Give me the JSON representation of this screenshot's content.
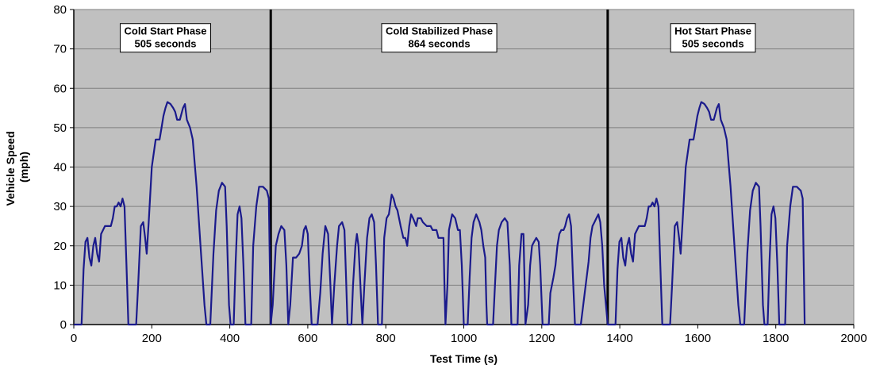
{
  "chart_data": {
    "type": "line",
    "title": "",
    "xlabel": "Test Time (s)",
    "ylabel_lines": [
      "Vehicle Speed",
      "(mph)"
    ],
    "xlim": [
      0,
      2000
    ],
    "ylim": [
      0,
      80
    ],
    "xticks": [
      0,
      200,
      400,
      600,
      800,
      1000,
      1200,
      1400,
      1600,
      1800,
      2000
    ],
    "yticks": [
      0,
      10,
      20,
      30,
      40,
      50,
      60,
      70,
      80
    ],
    "grid": true,
    "legend": "none",
    "colors": {
      "plot_bg": "#c0c0c0",
      "line": "#1a1a8c",
      "divider": "#000000",
      "grid": "#808080"
    },
    "phase_dividers": [
      505,
      1369
    ],
    "annotations": [
      {
        "line1": "Cold Start Phase",
        "line2": "505 seconds",
        "x": 235,
        "y": 73
      },
      {
        "line1": "Cold Stabilized Phase",
        "line2": "864 seconds",
        "x": 937,
        "y": 73
      },
      {
        "line1": "Hot Start Phase",
        "line2": "505 seconds",
        "x": 1639,
        "y": 73
      }
    ],
    "series": [
      {
        "values": [
          [
            0,
            0
          ],
          [
            20,
            0
          ],
          [
            25,
            14
          ],
          [
            30,
            21
          ],
          [
            35,
            22
          ],
          [
            40,
            17
          ],
          [
            45,
            15
          ],
          [
            50,
            20
          ],
          [
            55,
            22
          ],
          [
            60,
            18
          ],
          [
            65,
            16
          ],
          [
            70,
            23
          ],
          [
            80,
            25
          ],
          [
            95,
            25
          ],
          [
            100,
            27
          ],
          [
            105,
            30
          ],
          [
            110,
            30
          ],
          [
            115,
            31
          ],
          [
            120,
            30
          ],
          [
            125,
            32
          ],
          [
            130,
            30
          ],
          [
            135,
            15
          ],
          [
            140,
            0
          ],
          [
            160,
            0
          ],
          [
            165,
            10
          ],
          [
            172,
            25
          ],
          [
            178,
            26
          ],
          [
            183,
            22
          ],
          [
            187,
            18
          ],
          [
            192,
            26
          ],
          [
            200,
            40
          ],
          [
            210,
            47
          ],
          [
            220,
            47
          ],
          [
            225,
            50
          ],
          [
            230,
            53
          ],
          [
            235,
            55
          ],
          [
            240,
            56.5
          ],
          [
            248,
            56
          ],
          [
            255,
            55
          ],
          [
            260,
            54
          ],
          [
            265,
            52
          ],
          [
            272,
            52
          ],
          [
            280,
            55
          ],
          [
            285,
            56
          ],
          [
            290,
            52
          ],
          [
            298,
            50
          ],
          [
            305,
            47
          ],
          [
            315,
            35
          ],
          [
            325,
            20
          ],
          [
            335,
            5
          ],
          [
            340,
            0
          ],
          [
            350,
            0
          ],
          [
            358,
            18
          ],
          [
            365,
            29
          ],
          [
            372,
            34
          ],
          [
            380,
            36
          ],
          [
            388,
            35
          ],
          [
            392,
            25
          ],
          [
            398,
            5
          ],
          [
            402,
            0
          ],
          [
            410,
            0
          ],
          [
            415,
            16
          ],
          [
            420,
            28
          ],
          [
            425,
            30
          ],
          [
            430,
            27
          ],
          [
            435,
            15
          ],
          [
            440,
            0
          ],
          [
            455,
            0
          ],
          [
            460,
            20
          ],
          [
            468,
            30
          ],
          [
            475,
            35
          ],
          [
            485,
            35
          ],
          [
            495,
            34
          ],
          [
            500,
            32
          ],
          [
            505,
            0
          ],
          [
            510,
            5
          ],
          [
            518,
            20
          ],
          [
            525,
            23
          ],
          [
            532,
            25
          ],
          [
            540,
            24
          ],
          [
            545,
            15
          ],
          [
            550,
            0
          ],
          [
            555,
            5
          ],
          [
            562,
            17
          ],
          [
            570,
            17
          ],
          [
            578,
            18
          ],
          [
            585,
            20
          ],
          [
            590,
            24
          ],
          [
            595,
            25
          ],
          [
            600,
            23
          ],
          [
            605,
            10
          ],
          [
            610,
            0
          ],
          [
            625,
            0
          ],
          [
            632,
            8
          ],
          [
            638,
            18
          ],
          [
            645,
            25
          ],
          [
            652,
            23
          ],
          [
            658,
            10
          ],
          [
            662,
            0
          ],
          [
            668,
            10
          ],
          [
            675,
            20
          ],
          [
            680,
            25
          ],
          [
            688,
            26
          ],
          [
            694,
            24
          ],
          [
            698,
            12
          ],
          [
            702,
            0
          ],
          [
            712,
            0
          ],
          [
            716,
            10
          ],
          [
            722,
            20
          ],
          [
            726,
            23
          ],
          [
            730,
            20
          ],
          [
            736,
            8
          ],
          [
            740,
            0
          ],
          [
            745,
            10
          ],
          [
            752,
            22
          ],
          [
            758,
            27
          ],
          [
            764,
            28
          ],
          [
            770,
            26
          ],
          [
            775,
            15
          ],
          [
            780,
            0
          ],
          [
            790,
            0
          ],
          [
            796,
            22
          ],
          [
            802,
            27
          ],
          [
            808,
            28
          ],
          [
            815,
            33
          ],
          [
            820,
            32
          ],
          [
            825,
            30
          ],
          [
            830,
            29
          ],
          [
            838,
            25
          ],
          [
            845,
            22
          ],
          [
            850,
            22
          ],
          [
            855,
            20
          ],
          [
            860,
            25
          ],
          [
            865,
            28
          ],
          [
            870,
            27
          ],
          [
            878,
            25
          ],
          [
            882,
            27
          ],
          [
            890,
            27
          ],
          [
            895,
            26
          ],
          [
            905,
            25
          ],
          [
            915,
            25
          ],
          [
            920,
            24
          ],
          [
            930,
            24
          ],
          [
            935,
            22
          ],
          [
            942,
            22
          ],
          [
            948,
            22
          ],
          [
            950,
            12
          ],
          [
            953,
            0
          ],
          [
            958,
            10
          ],
          [
            962,
            24
          ],
          [
            970,
            28
          ],
          [
            978,
            27
          ],
          [
            985,
            24
          ],
          [
            990,
            24
          ],
          [
            995,
            15
          ],
          [
            1000,
            0
          ],
          [
            1010,
            0
          ],
          [
            1015,
            12
          ],
          [
            1020,
            22
          ],
          [
            1025,
            26
          ],
          [
            1032,
            28
          ],
          [
            1040,
            26
          ],
          [
            1045,
            24
          ],
          [
            1050,
            20
          ],
          [
            1055,
            17
          ],
          [
            1058,
            5
          ],
          [
            1060,
            0
          ],
          [
            1075,
            0
          ],
          [
            1080,
            10
          ],
          [
            1085,
            20
          ],
          [
            1090,
            24
          ],
          [
            1097,
            26
          ],
          [
            1105,
            27
          ],
          [
            1112,
            26
          ],
          [
            1118,
            15
          ],
          [
            1122,
            0
          ],
          [
            1138,
            0
          ],
          [
            1142,
            15
          ],
          [
            1148,
            23
          ],
          [
            1153,
            23
          ],
          [
            1156,
            10
          ],
          [
            1158,
            0
          ],
          [
            1165,
            5
          ],
          [
            1170,
            15
          ],
          [
            1175,
            20
          ],
          [
            1180,
            21
          ],
          [
            1186,
            22
          ],
          [
            1192,
            21
          ],
          [
            1196,
            15
          ],
          [
            1200,
            5
          ],
          [
            1202,
            0
          ],
          [
            1218,
            0
          ],
          [
            1222,
            8
          ],
          [
            1230,
            12
          ],
          [
            1235,
            15
          ],
          [
            1240,
            20
          ],
          [
            1245,
            23
          ],
          [
            1250,
            24
          ],
          [
            1256,
            24
          ],
          [
            1260,
            25
          ],
          [
            1265,
            27
          ],
          [
            1270,
            28
          ],
          [
            1275,
            25
          ],
          [
            1280,
            12
          ],
          [
            1285,
            0
          ],
          [
            1300,
            0
          ],
          [
            1310,
            8
          ],
          [
            1320,
            16
          ],
          [
            1325,
            22
          ],
          [
            1330,
            25
          ],
          [
            1335,
            26
          ],
          [
            1340,
            27
          ],
          [
            1345,
            28
          ],
          [
            1350,
            26
          ],
          [
            1355,
            20
          ],
          [
            1360,
            10
          ],
          [
            1369,
            0
          ],
          [
            1389,
            0
          ],
          [
            1394,
            14
          ],
          [
            1399,
            21
          ],
          [
            1404,
            22
          ],
          [
            1409,
            17
          ],
          [
            1414,
            15
          ],
          [
            1419,
            20
          ],
          [
            1424,
            22
          ],
          [
            1429,
            18
          ],
          [
            1434,
            16
          ],
          [
            1439,
            23
          ],
          [
            1449,
            25
          ],
          [
            1464,
            25
          ],
          [
            1469,
            27
          ],
          [
            1474,
            30
          ],
          [
            1479,
            30
          ],
          [
            1484,
            31
          ],
          [
            1489,
            30
          ],
          [
            1494,
            32
          ],
          [
            1499,
            30
          ],
          [
            1504,
            15
          ],
          [
            1509,
            0
          ],
          [
            1529,
            0
          ],
          [
            1534,
            10
          ],
          [
            1541,
            25
          ],
          [
            1547,
            26
          ],
          [
            1552,
            22
          ],
          [
            1556,
            18
          ],
          [
            1561,
            26
          ],
          [
            1569,
            40
          ],
          [
            1579,
            47
          ],
          [
            1589,
            47
          ],
          [
            1594,
            50
          ],
          [
            1599,
            53
          ],
          [
            1604,
            55
          ],
          [
            1609,
            56.5
          ],
          [
            1617,
            56
          ],
          [
            1624,
            55
          ],
          [
            1629,
            54
          ],
          [
            1634,
            52
          ],
          [
            1641,
            52
          ],
          [
            1649,
            55
          ],
          [
            1654,
            56
          ],
          [
            1659,
            52
          ],
          [
            1667,
            50
          ],
          [
            1674,
            47
          ],
          [
            1684,
            35
          ],
          [
            1694,
            20
          ],
          [
            1704,
            5
          ],
          [
            1709,
            0
          ],
          [
            1719,
            0
          ],
          [
            1727,
            18
          ],
          [
            1734,
            29
          ],
          [
            1741,
            34
          ],
          [
            1749,
            36
          ],
          [
            1757,
            35
          ],
          [
            1761,
            25
          ],
          [
            1767,
            5
          ],
          [
            1771,
            0
          ],
          [
            1779,
            0
          ],
          [
            1784,
            16
          ],
          [
            1789,
            28
          ],
          [
            1794,
            30
          ],
          [
            1799,
            27
          ],
          [
            1804,
            15
          ],
          [
            1809,
            0
          ],
          [
            1824,
            0
          ],
          [
            1829,
            20
          ],
          [
            1837,
            30
          ],
          [
            1844,
            35
          ],
          [
            1854,
            35
          ],
          [
            1864,
            34
          ],
          [
            1869,
            32
          ],
          [
            1874,
            0
          ]
        ]
      }
    ]
  }
}
